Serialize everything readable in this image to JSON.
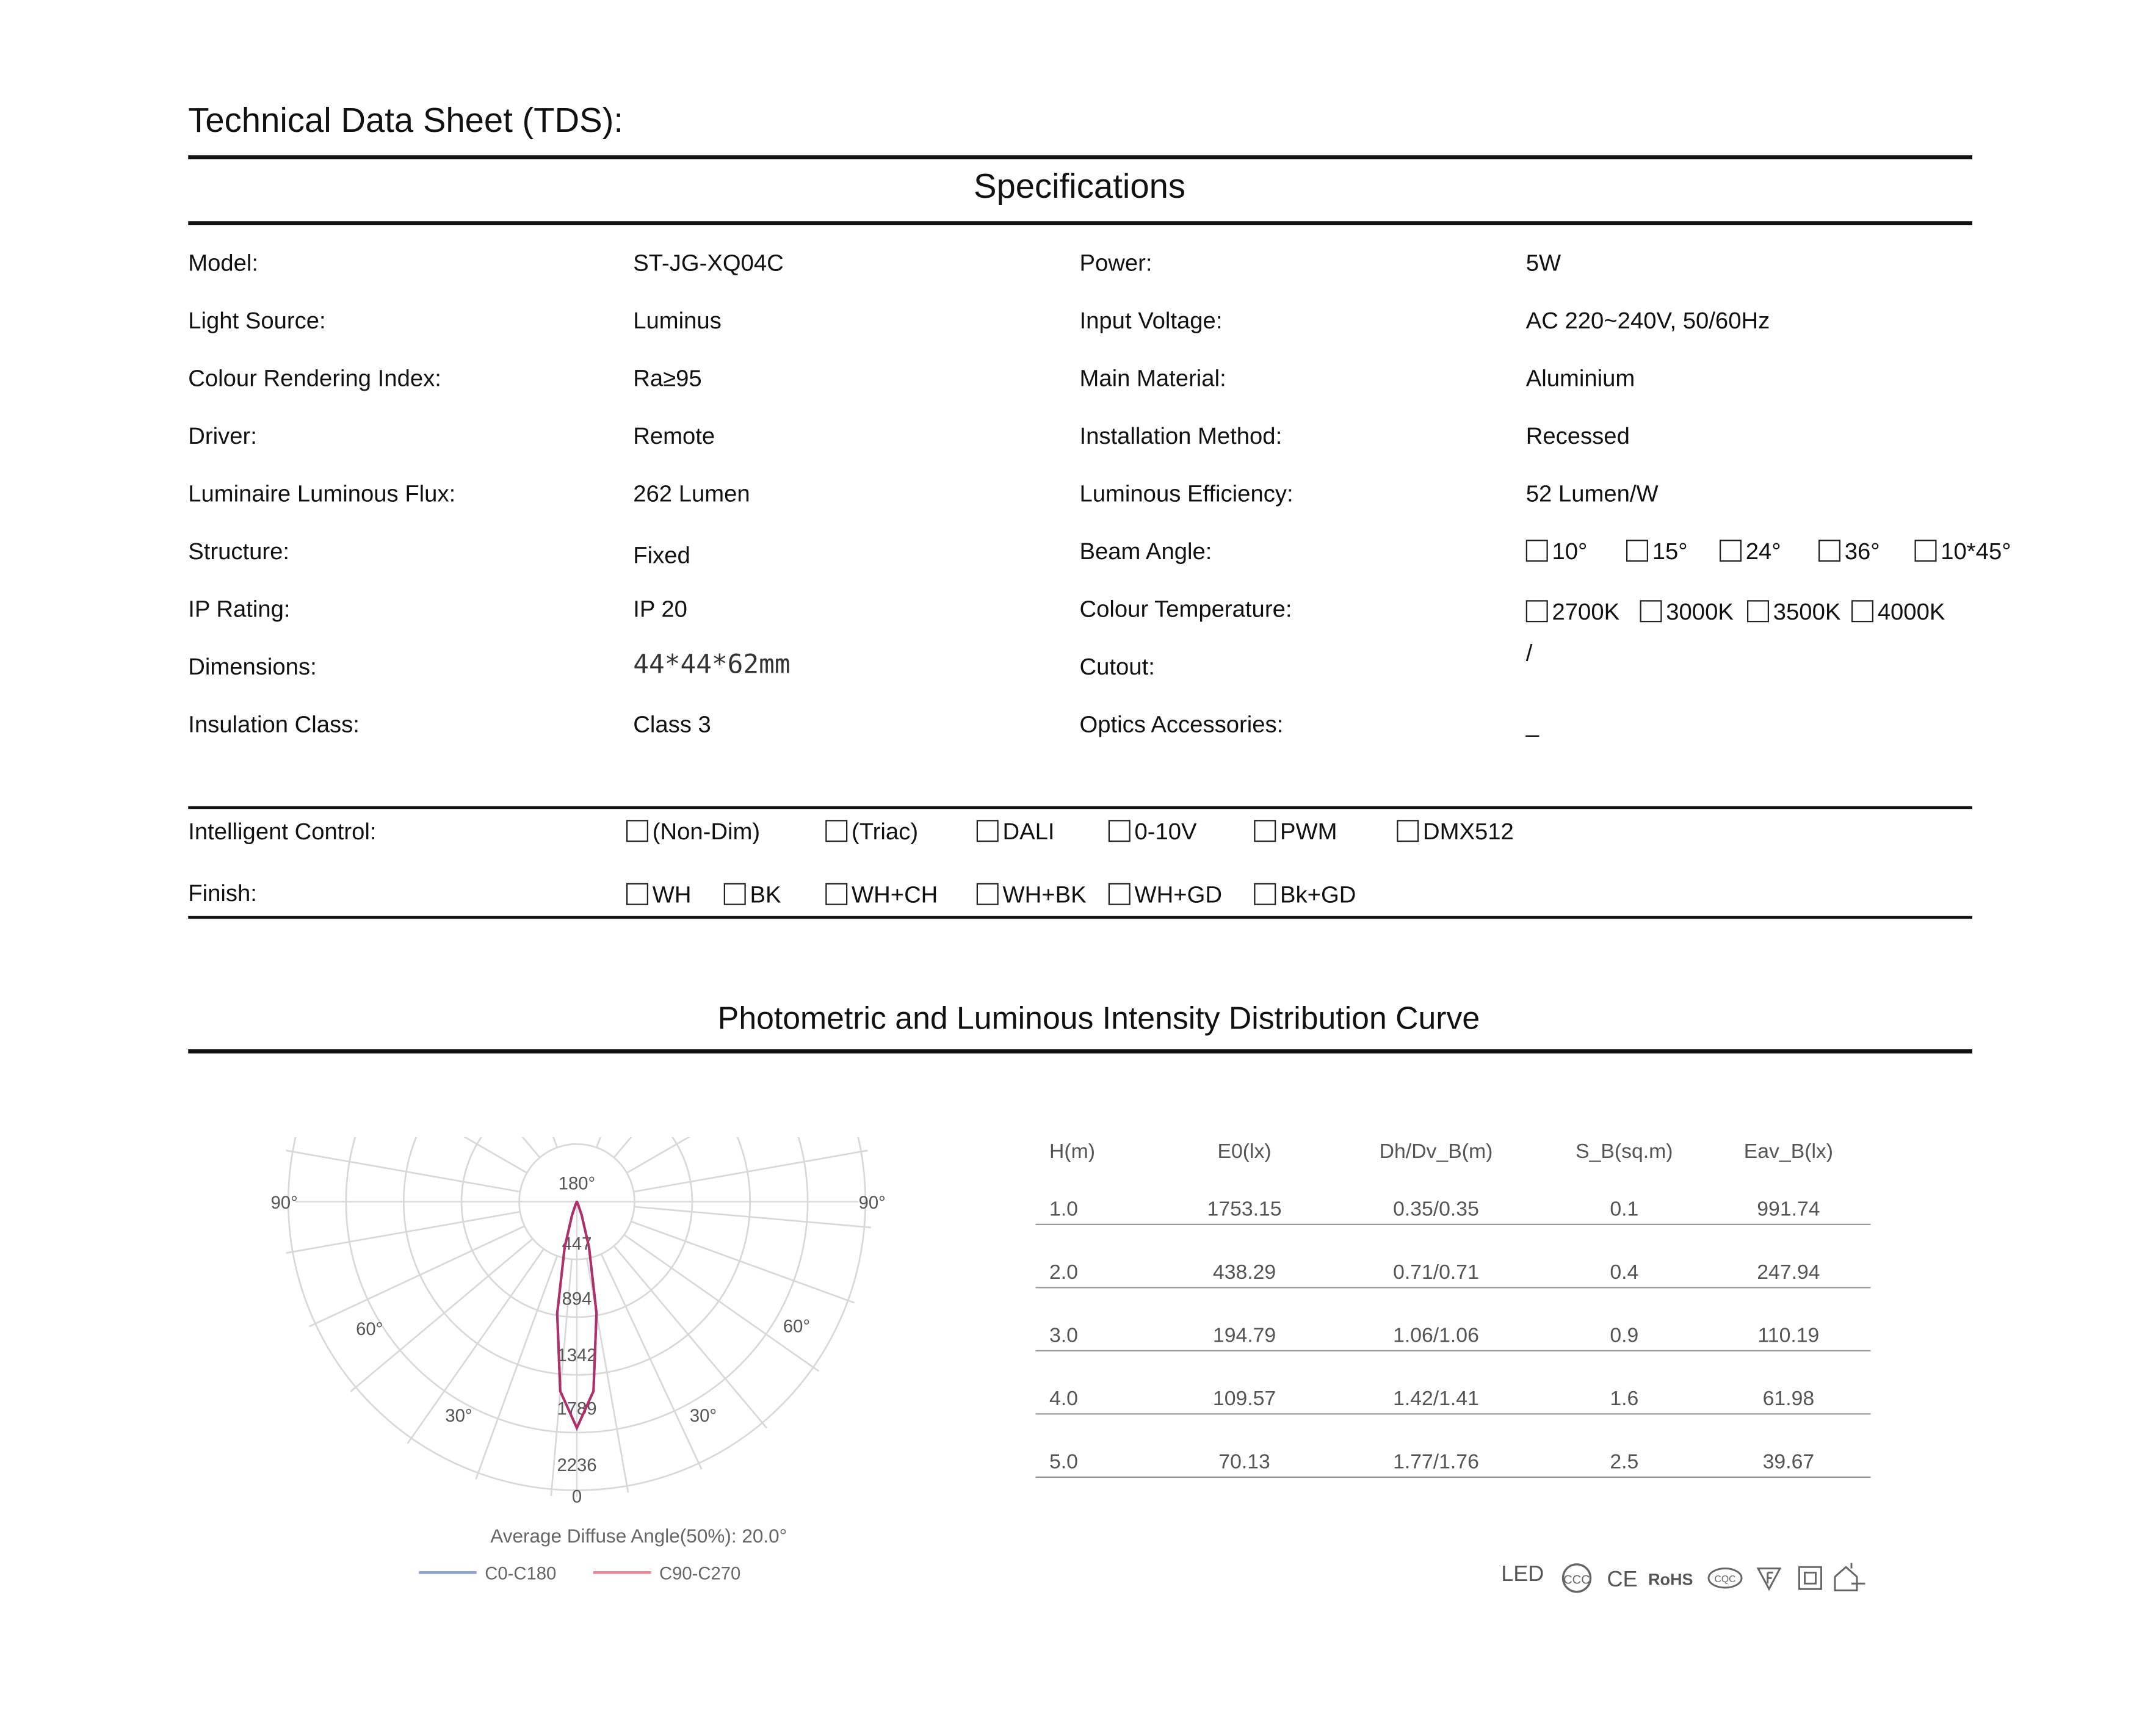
{
  "title": "Technical  Data Sheet (TDS):",
  "specifications": {
    "heading": "Specifications",
    "left": [
      {
        "label": "Model:",
        "value": "ST-JG-XQ04C"
      },
      {
        "label": "Light Source:",
        "value": "Luminus"
      },
      {
        "label": "Colour Rendering Index:",
        "value": "Ra≥95"
      },
      {
        "label": "Driver:",
        "value": "Remote"
      },
      {
        "label": "Luminaire Luminous Flux:",
        "value": "262  Lumen"
      },
      {
        "label": "Structure:",
        "value": "Fixed"
      },
      {
        "label": "IP Rating:",
        "value": "IP 20"
      },
      {
        "label": "Dimensions:",
        "value": "44*44*62mm"
      },
      {
        "label": "Insulation Class:",
        "value": "Class 3"
      }
    ],
    "right": [
      {
        "label": "Power:",
        "value": "5W"
      },
      {
        "label": "Input Voltage:",
        "value": "AC 220~240V, 50/60Hz"
      },
      {
        "label": "Main Material:",
        "value": "Aluminium"
      },
      {
        "label": "Installation Method:",
        "value": "Recessed"
      },
      {
        "label": "Luminous Efficiency:",
        "value": "52 Lumen/W"
      },
      {
        "label": "Beam Angle:",
        "value": ""
      },
      {
        "label": "Colour Temperature:",
        "value": ""
      },
      {
        "label": "Cutout:",
        "value": "/"
      },
      {
        "label": "Optics Accessories:",
        "value": "_"
      }
    ],
    "beam_angle_options": [
      "10°",
      "15°",
      "24°",
      "36°",
      "10*45°"
    ],
    "colour_temperature_options": [
      "2700K",
      "3000K",
      "3500K",
      "4000K"
    ]
  },
  "controls": {
    "intelligent_control": {
      "label": "Intelligent Control:",
      "options": [
        "(Non-Dim)",
        "(Triac)",
        "DALI",
        "0-10V",
        "PWM",
        "DMX512"
      ]
    },
    "finish": {
      "label": "Finish:",
      "options": [
        "WH",
        "BK",
        "WH+CH",
        "WH+BK",
        "WH+GD",
        "Bk+GD"
      ]
    }
  },
  "photometric": {
    "heading": "Photometric and Luminous Intensity Distribution Curve",
    "chart_data": {
      "type": "polar-line",
      "angle_labels": [
        "180°",
        "90°",
        "90°",
        "60°",
        "60°",
        "30°",
        "30°",
        "0"
      ],
      "radial_ticks": [
        447,
        894,
        1342,
        1789,
        2236
      ],
      "annotation": "Average Diffuse Angle(50%): 20.0°",
      "series": [
        {
          "name": "C0-C180",
          "color": "#8fa3c8",
          "angles": [
            0,
            5,
            10,
            15,
            20,
            25,
            30
          ],
          "values": [
            1753,
            1473,
            877,
            368,
            110,
            23,
            3
          ]
        },
        {
          "name": "C90-C270",
          "color": "#e08a9a",
          "angles": [
            0,
            5,
            10,
            15,
            20,
            25,
            30
          ],
          "values": [
            1753,
            1473,
            877,
            368,
            110,
            23,
            3
          ]
        }
      ],
      "curve_color": "#b0306a"
    },
    "table": {
      "headers": [
        "H(m)",
        "E0(lx)",
        "Dh/Dv_B(m)",
        "S_B(sq.m)",
        "Eav_B(lx)"
      ],
      "rows": [
        [
          "1.0",
          "1753.15",
          "0.35/0.35",
          "0.1",
          "991.74"
        ],
        [
          "2.0",
          "438.29",
          "0.71/0.71",
          "0.4",
          "247.94"
        ],
        [
          "3.0",
          "194.79",
          "1.06/1.06",
          "0.9",
          "110.19"
        ],
        [
          "4.0",
          "109.57",
          "1.42/1.41",
          "1.6",
          "61.98"
        ],
        [
          "5.0",
          "70.13",
          "1.77/1.76",
          "2.5",
          "39.67"
        ]
      ]
    },
    "certifications": {
      "led": "LED",
      "ce": "CE",
      "rohs": "RoHS",
      "cqc": "CQC",
      "icons": [
        "ccc-mark",
        "ce-mark",
        "rohs-mark",
        "cqc-mark",
        "f-triangle-mark",
        "class-ii-square-mark",
        "indoor-use-house-mark"
      ]
    }
  }
}
